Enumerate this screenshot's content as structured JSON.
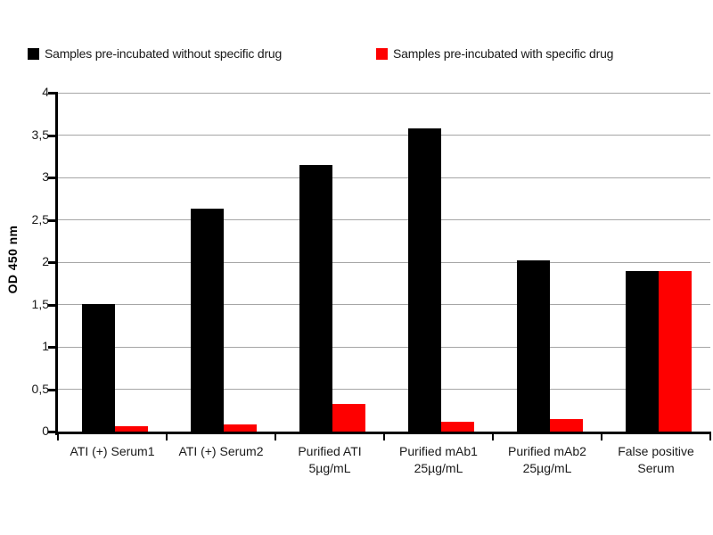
{
  "legend": {
    "items": [
      {
        "label": "Samples pre-incubated without specific drug",
        "color": "#000000"
      },
      {
        "label": "Samples pre-incubated with specific drug",
        "color": "#fe0000"
      }
    ]
  },
  "chart_data": {
    "type": "bar",
    "title": "",
    "ylabel": "OD 450 nm",
    "xlabel": "",
    "ylim": [
      0,
      4
    ],
    "grid": true,
    "legend_position": "top",
    "decimal_separator": ",",
    "yticks": [
      {
        "value": 0,
        "label": "0"
      },
      {
        "value": 0.5,
        "label": "0,5"
      },
      {
        "value": 1,
        "label": "1"
      },
      {
        "value": 1.5,
        "label": "1,5"
      },
      {
        "value": 2,
        "label": "2"
      },
      {
        "value": 2.5,
        "label": "2,5"
      },
      {
        "value": 3,
        "label": "3"
      },
      {
        "value": 3.5,
        "label": "3,5"
      },
      {
        "value": 4,
        "label": "4"
      }
    ],
    "categories": [
      "ATI (+) Serum1",
      "ATI (+) Serum2",
      "Purified ATI\n5µg/mL",
      "Purified mAb1\n25µg/mL",
      "Purified mAb2\n25µg/mL",
      "False positive\nSerum"
    ],
    "series": [
      {
        "name": "Samples pre-incubated without specific drug",
        "color": "#000000",
        "values": [
          1.51,
          2.63,
          3.15,
          3.58,
          2.02,
          1.9
        ]
      },
      {
        "name": "Samples pre-incubated with specific drug",
        "color": "#fe0000",
        "values": [
          0.06,
          0.08,
          0.33,
          0.12,
          0.15,
          1.9
        ]
      }
    ]
  },
  "colors": {
    "gridline": "#a6a6a6",
    "axis": "#000000",
    "text": "#1a1a1a"
  }
}
